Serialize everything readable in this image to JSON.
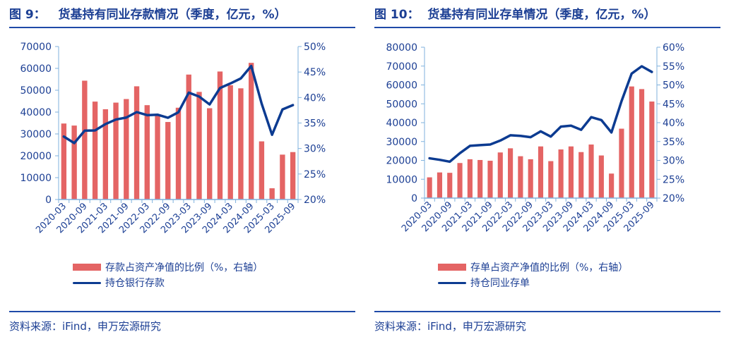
{
  "colors": {
    "bar": "#e46464",
    "line": "#0c3b91",
    "axis": "#7fb2de",
    "text": "#1c3f94"
  },
  "source": "资料来源：iFind，申万宏源研究",
  "chart_data": [
    {
      "type": "bar+line",
      "title": "图 9：   货基持有同业存款情况（季度，亿元，%）",
      "categories": [
        "2020-03",
        "2020-06",
        "2020-09",
        "2020-12",
        "2021-03",
        "2021-06",
        "2021-09",
        "2021-12",
        "2022-03",
        "2022-06",
        "2022-09",
        "2022-12",
        "2023-03",
        "2023-06",
        "2023-09",
        "2023-12",
        "2024-03",
        "2024-06",
        "2024-09",
        "2024-12",
        "2025-03",
        "2025-06",
        "2025-09"
      ],
      "tick_labels": [
        "2020-03",
        "2020-09",
        "2021-03",
        "2021-09",
        "2022-03",
        "2022-09",
        "2023-03",
        "2023-09",
        "2024-03",
        "2024-09",
        "2025-03",
        "2025-09"
      ],
      "left_axis": {
        "ylim": [
          0,
          70000
        ],
        "ticks": [
          "0",
          "10000",
          "20000",
          "30000",
          "40000",
          "50000",
          "60000",
          "70000"
        ]
      },
      "right_axis": {
        "ylim": [
          20,
          50
        ],
        "ticks": [
          "20%",
          "25%",
          "30%",
          "35%",
          "40%",
          "45%",
          "50%"
        ]
      },
      "bar_series": {
        "name": "存款占资产净值的比例（%，右轴）",
        "axis": "right",
        "values": [
          34.9,
          34.5,
          43.3,
          39.2,
          37.7,
          39.0,
          39.7,
          42.2,
          38.5,
          36.5,
          35.2,
          38.0,
          44.5,
          41.1,
          37.9,
          45.1,
          42.4,
          41.8,
          46.8,
          31.4,
          22.2,
          28.8,
          29.3
        ]
      },
      "line_series": {
        "name": "持仓银行存款",
        "axis": "left",
        "values": [
          28800,
          25800,
          31500,
          31600,
          34500,
          36600,
          37500,
          40000,
          38600,
          38800,
          37400,
          39900,
          48900,
          47100,
          43500,
          51000,
          53100,
          55400,
          61100,
          43900,
          29600,
          41200,
          43200
        ]
      },
      "grid": false,
      "legend": "bottom"
    },
    {
      "type": "bar+line",
      "title": "图 10：  货基持有同业存单情况（季度，亿元，%）",
      "categories": [
        "2020-03",
        "2020-06",
        "2020-09",
        "2020-12",
        "2021-03",
        "2021-06",
        "2021-09",
        "2021-12",
        "2022-03",
        "2022-06",
        "2022-09",
        "2022-12",
        "2023-03",
        "2023-06",
        "2023-09",
        "2023-12",
        "2024-03",
        "2024-06",
        "2024-09",
        "2024-12",
        "2025-03",
        "2025-06",
        "2025-09"
      ],
      "tick_labels": [
        "2020-03",
        "2020-09",
        "2021-03",
        "2021-09",
        "2022-03",
        "2022-09",
        "2023-03",
        "2023-09",
        "2024-03",
        "2024-09",
        "2025-03",
        "2025-09"
      ],
      "left_axis": {
        "ylim": [
          0,
          80000
        ],
        "ticks": [
          "0",
          "10000",
          "20000",
          "30000",
          "40000",
          "50000",
          "60000",
          "70000",
          "80000"
        ]
      },
      "right_axis": {
        "ylim": [
          20,
          60
        ],
        "ticks": [
          "20%",
          "25%",
          "30%",
          "35%",
          "40%",
          "45%",
          "50%",
          "55%",
          "60%"
        ]
      },
      "bar_series": {
        "name": "存单占资产净值的比例（%，右轴）",
        "axis": "right",
        "values": [
          25.5,
          26.8,
          26.7,
          29.3,
          30.3,
          30.1,
          29.9,
          32.1,
          33.2,
          31.1,
          30.3,
          33.7,
          29.8,
          32.9,
          33.7,
          32.2,
          34.2,
          31.3,
          26.5,
          38.4,
          49.6,
          48.9,
          45.6
        ]
      },
      "line_series": {
        "name": "持仓同业存单",
        "axis": "left",
        "values": [
          21100,
          20300,
          19300,
          23800,
          27700,
          28100,
          28400,
          30500,
          33300,
          33000,
          32300,
          35400,
          32600,
          37900,
          38400,
          36200,
          42900,
          41400,
          34800,
          51400,
          66000,
          69900,
          66900
        ]
      },
      "grid": false,
      "legend": "bottom"
    }
  ]
}
